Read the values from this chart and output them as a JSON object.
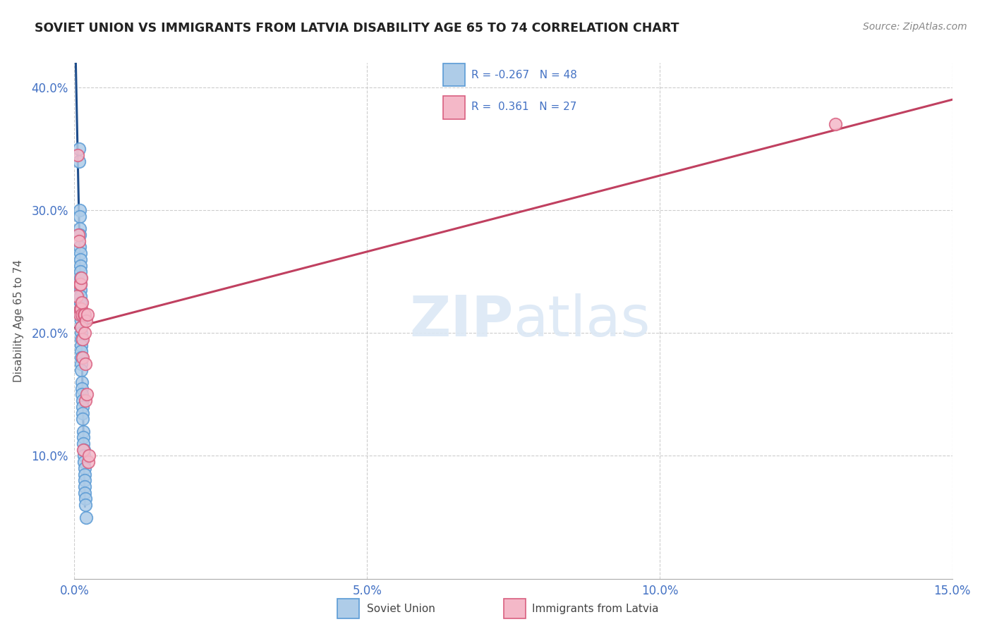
{
  "title": "SOVIET UNION VS IMMIGRANTS FROM LATVIA DISABILITY AGE 65 TO 74 CORRELATION CHART",
  "source": "Source: ZipAtlas.com",
  "ylabel": "Disability Age 65 to 74",
  "xmin": 0.0,
  "xmax": 0.15,
  "ymin": 0.0,
  "ymax": 0.42,
  "xtick_labels": [
    "0.0%",
    "5.0%",
    "10.0%",
    "15.0%"
  ],
  "xtick_vals": [
    0.0,
    0.05,
    0.1,
    0.15
  ],
  "ytick_labels": [
    "10.0%",
    "20.0%",
    "30.0%",
    "40.0%"
  ],
  "ytick_vals": [
    0.1,
    0.2,
    0.3,
    0.4
  ],
  "soviet_color": "#aecce8",
  "soviet_edge_color": "#5b9bd5",
  "latvia_color": "#f4b8c8",
  "latvia_edge_color": "#d96080",
  "trendline_soviet_color": "#1f4e8c",
  "trendline_latvia_color": "#c04060",
  "background_color": "#ffffff",
  "soviet_x": [
    0.0008,
    0.0008,
    0.0009,
    0.0009,
    0.0009,
    0.0009,
    0.0009,
    0.001,
    0.001,
    0.001,
    0.001,
    0.001,
    0.001,
    0.001,
    0.001,
    0.001,
    0.001,
    0.0011,
    0.0011,
    0.0011,
    0.0011,
    0.0011,
    0.0012,
    0.0012,
    0.0012,
    0.0012,
    0.0012,
    0.0013,
    0.0013,
    0.0013,
    0.0014,
    0.0014,
    0.0014,
    0.0014,
    0.0015,
    0.0015,
    0.0015,
    0.0016,
    0.0016,
    0.0016,
    0.0017,
    0.0017,
    0.0018,
    0.0018,
    0.0018,
    0.0019,
    0.0019,
    0.002
  ],
  "soviet_y": [
    0.35,
    0.34,
    0.3,
    0.295,
    0.285,
    0.28,
    0.27,
    0.265,
    0.26,
    0.255,
    0.25,
    0.245,
    0.24,
    0.235,
    0.23,
    0.225,
    0.22,
    0.215,
    0.21,
    0.205,
    0.2,
    0.195,
    0.19,
    0.185,
    0.18,
    0.175,
    0.17,
    0.16,
    0.155,
    0.15,
    0.145,
    0.14,
    0.135,
    0.13,
    0.12,
    0.115,
    0.11,
    0.105,
    0.1,
    0.095,
    0.09,
    0.085,
    0.08,
    0.075,
    0.07,
    0.065,
    0.06,
    0.05
  ],
  "latvia_x": [
    0.0004,
    0.0006,
    0.0007,
    0.0008,
    0.0009,
    0.0009,
    0.001,
    0.001,
    0.0011,
    0.0011,
    0.0012,
    0.0013,
    0.0013,
    0.0014,
    0.0014,
    0.0015,
    0.0016,
    0.0017,
    0.0018,
    0.0019,
    0.0019,
    0.002,
    0.0021,
    0.0022,
    0.0023,
    0.0025,
    0.13
  ],
  "latvia_y": [
    0.23,
    0.345,
    0.28,
    0.275,
    0.24,
    0.215,
    0.22,
    0.24,
    0.22,
    0.245,
    0.205,
    0.215,
    0.225,
    0.18,
    0.195,
    0.105,
    0.215,
    0.2,
    0.215,
    0.175,
    0.145,
    0.21,
    0.15,
    0.215,
    0.095,
    0.1,
    0.37
  ]
}
